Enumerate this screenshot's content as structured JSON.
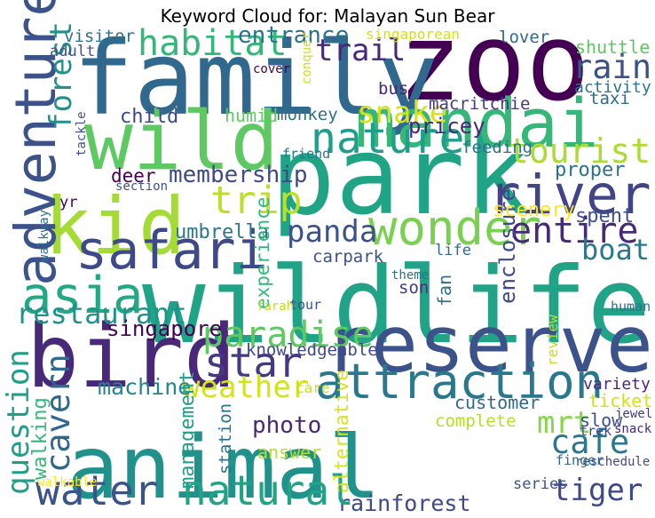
{
  "chart_data": {
    "type": "wordcloud",
    "title": "Keyword Cloud for: Malayan Sun Bear",
    "background": "#ffffff",
    "words": [
      {
        "text": "animal",
        "weight": 100,
        "color": "#21918c"
      },
      {
        "text": "wildlife",
        "weight": 90,
        "color": "#20a386"
      },
      {
        "text": "zoo",
        "weight": 82,
        "color": "#440154"
      },
      {
        "text": "park",
        "weight": 78,
        "color": "#20a486"
      },
      {
        "text": "family",
        "weight": 74,
        "color": "#31688e"
      },
      {
        "text": "reserve",
        "weight": 66,
        "color": "#3b528b"
      },
      {
        "text": "bird",
        "weight": 64,
        "color": "#482878"
      },
      {
        "text": "wild",
        "weight": 60,
        "color": "#5ec962"
      },
      {
        "text": "kid",
        "weight": 58,
        "color": "#a5db36"
      },
      {
        "text": "mandai",
        "weight": 50,
        "color": "#35b779"
      },
      {
        "text": "river",
        "weight": 44,
        "color": "#414487"
      },
      {
        "text": "adventure",
        "weight": 42,
        "color": "#3b528b"
      },
      {
        "text": "safari",
        "weight": 40,
        "color": "#3e4989"
      },
      {
        "text": "asia",
        "weight": 38,
        "color": "#22a884"
      },
      {
        "text": "wonder",
        "weight": 36,
        "color": "#7ad151"
      },
      {
        "text": "attraction",
        "weight": 36,
        "color": "#2a788e"
      },
      {
        "text": "nature",
        "weight": 32,
        "color": "#1f9e89"
      },
      {
        "text": "rainforest",
        "weight": 30,
        "color": "#3e4989"
      },
      {
        "text": "natural",
        "weight": 30,
        "color": "#20a486"
      },
      {
        "text": "water",
        "weight": 30,
        "color": "#3b528b"
      },
      {
        "text": "star",
        "weight": 30,
        "color": "#443983"
      },
      {
        "text": "trip",
        "weight": 28,
        "color": "#bddf26"
      },
      {
        "text": "entire",
        "weight": 26,
        "color": "#482878"
      },
      {
        "text": "tourist",
        "weight": 26,
        "color": "#addc30"
      },
      {
        "text": "paradise",
        "weight": 26,
        "color": "#5ec962"
      },
      {
        "text": "habitat",
        "weight": 26,
        "color": "#35b779"
      },
      {
        "text": "cavern",
        "weight": 24,
        "color": "#31688e"
      },
      {
        "text": "cafe",
        "weight": 24,
        "color": "#2a788e"
      },
      {
        "text": "rain",
        "weight": 24,
        "color": "#3b528b"
      },
      {
        "text": "tiger",
        "weight": 22,
        "color": "#3e4989"
      },
      {
        "text": "forest",
        "weight": 22,
        "color": "#21918c"
      },
      {
        "text": "question",
        "weight": 22,
        "color": "#1f9e89"
      },
      {
        "text": "weather",
        "weight": 22,
        "color": "#d2e21b"
      },
      {
        "text": "panda",
        "weight": 22,
        "color": "#3b528b"
      },
      {
        "text": "snake",
        "weight": 22,
        "color": "#d8e219"
      },
      {
        "text": "trail",
        "weight": 22,
        "color": "#482878"
      },
      {
        "text": "mrt",
        "weight": 22,
        "color": "#86d549"
      },
      {
        "text": "restaurant",
        "weight": 20,
        "color": "#21918c"
      },
      {
        "text": "boat",
        "weight": 20,
        "color": "#2a788e"
      },
      {
        "text": "shuttle",
        "weight": 18,
        "color": "#5ec962"
      },
      {
        "text": "membership",
        "weight": 16,
        "color": "#3e4989"
      },
      {
        "text": "activity",
        "weight": 16,
        "color": "#2c728e"
      },
      {
        "text": "entrance",
        "weight": 16,
        "color": "#2c728e"
      },
      {
        "text": "photo",
        "weight": 16,
        "color": "#482878"
      },
      {
        "text": "machine",
        "weight": 15,
        "color": "#25858e"
      },
      {
        "text": "ticket",
        "weight": 15,
        "color": "#d2e21b"
      },
      {
        "text": "pricey",
        "weight": 14,
        "color": "#482878"
      },
      {
        "text": "singapore",
        "weight": 14,
        "color": "#440154"
      },
      {
        "text": "enclosure",
        "weight": 14,
        "color": "#3e4989"
      },
      {
        "text": "umbrella",
        "weight": 13,
        "color": "#2a788e"
      },
      {
        "text": "management",
        "weight": 13,
        "color": "#1f9e89"
      },
      {
        "text": "walking",
        "weight": 13,
        "color": "#35b779"
      },
      {
        "text": "scenery",
        "weight": 13,
        "color": "#fde725"
      },
      {
        "text": "spent",
        "weight": 13,
        "color": "#3b528b"
      },
      {
        "text": "proper",
        "weight": 13,
        "color": "#2c728e"
      },
      {
        "text": "child",
        "weight": 13,
        "color": "#3e4989"
      },
      {
        "text": "experience",
        "weight": 12,
        "color": "#35b779"
      },
      {
        "text": "alternative",
        "weight": 12,
        "color": "#d8e219"
      },
      {
        "text": "deer",
        "weight": 12,
        "color": "#440154"
      },
      {
        "text": "humid",
        "weight": 11,
        "color": "#5ec962"
      },
      {
        "text": "answer",
        "weight": 11,
        "color": "#b5de2b"
      },
      {
        "text": "fan",
        "weight": 11,
        "color": "#2c728e"
      },
      {
        "text": "customer",
        "weight": 11,
        "color": "#31688e"
      },
      {
        "text": "snack",
        "weight": 11,
        "color": "#482878"
      },
      {
        "text": "jewel",
        "weight": 11,
        "color": "#443983"
      },
      {
        "text": "slow",
        "weight": 11,
        "color": "#3b528b"
      },
      {
        "text": "human",
        "weight": 10,
        "color": "#2c728e"
      },
      {
        "text": "variety",
        "weight": 10,
        "color": "#482878"
      },
      {
        "text": "reschedule",
        "weight": 10,
        "color": "#3e4989"
      },
      {
        "text": "monkey",
        "weight": 10,
        "color": "#2c728e"
      },
      {
        "text": "macritchie",
        "weight": 10,
        "color": "#443983"
      },
      {
        "text": "visitor",
        "weight": 10,
        "color": "#2c728e"
      },
      {
        "text": "lover",
        "weight": 10,
        "color": "#31688e"
      },
      {
        "text": "carpark",
        "weight": 10,
        "color": "#3b528b"
      },
      {
        "text": "station",
        "weight": 10,
        "color": "#2c728e"
      },
      {
        "text": "knowledgeable",
        "weight": 10,
        "color": "#3e4989"
      },
      {
        "text": "taxi",
        "weight": 10,
        "color": "#31688e"
      },
      {
        "text": "feeding",
        "weight": 10,
        "color": "#2c728e"
      },
      {
        "text": "complete",
        "weight": 10,
        "color": "#b5de2b"
      },
      {
        "text": "bus",
        "weight": 10,
        "color": "#482878"
      },
      {
        "text": "son",
        "weight": 10,
        "color": "#443983"
      },
      {
        "text": "life",
        "weight": 9,
        "color": "#31688e"
      },
      {
        "text": "yr",
        "weight": 9,
        "color": "#440154"
      },
      {
        "text": "series",
        "weight": 9,
        "color": "#3b528b"
      },
      {
        "text": "adult",
        "weight": 9,
        "color": "#3b528b"
      },
      {
        "text": "care",
        "weight": 8,
        "color": "#c8e020"
      },
      {
        "text": "review",
        "weight": 8,
        "color": "#bddf26"
      },
      {
        "text": "singaporean",
        "weight": 8,
        "color": "#d2e21b"
      },
      {
        "text": "friend",
        "weight": 7,
        "color": "#2c728e"
      },
      {
        "text": "tour",
        "weight": 7,
        "color": "#3b528b"
      },
      {
        "text": "trek",
        "weight": 7,
        "color": "#3e4989"
      },
      {
        "text": "finger",
        "weight": 7,
        "color": "#31688e"
      },
      {
        "text": "section",
        "weight": 6,
        "color": "#3b528b"
      },
      {
        "text": "cover",
        "weight": 6,
        "color": "#440154"
      },
      {
        "text": "conquer",
        "weight": 6,
        "color": "#c8e020"
      },
      {
        "text": "tackle",
        "weight": 6,
        "color": "#3b528b"
      },
      {
        "text": "walkway",
        "weight": 6,
        "color": "#2c728e"
      },
      {
        "text": "walkable",
        "weight": 6,
        "color": "#fde725"
      },
      {
        "text": "theme",
        "weight": 6,
        "color": "#2c728e"
      },
      {
        "text": "farah",
        "weight": 6,
        "color": "#bddf26"
      }
    ]
  }
}
